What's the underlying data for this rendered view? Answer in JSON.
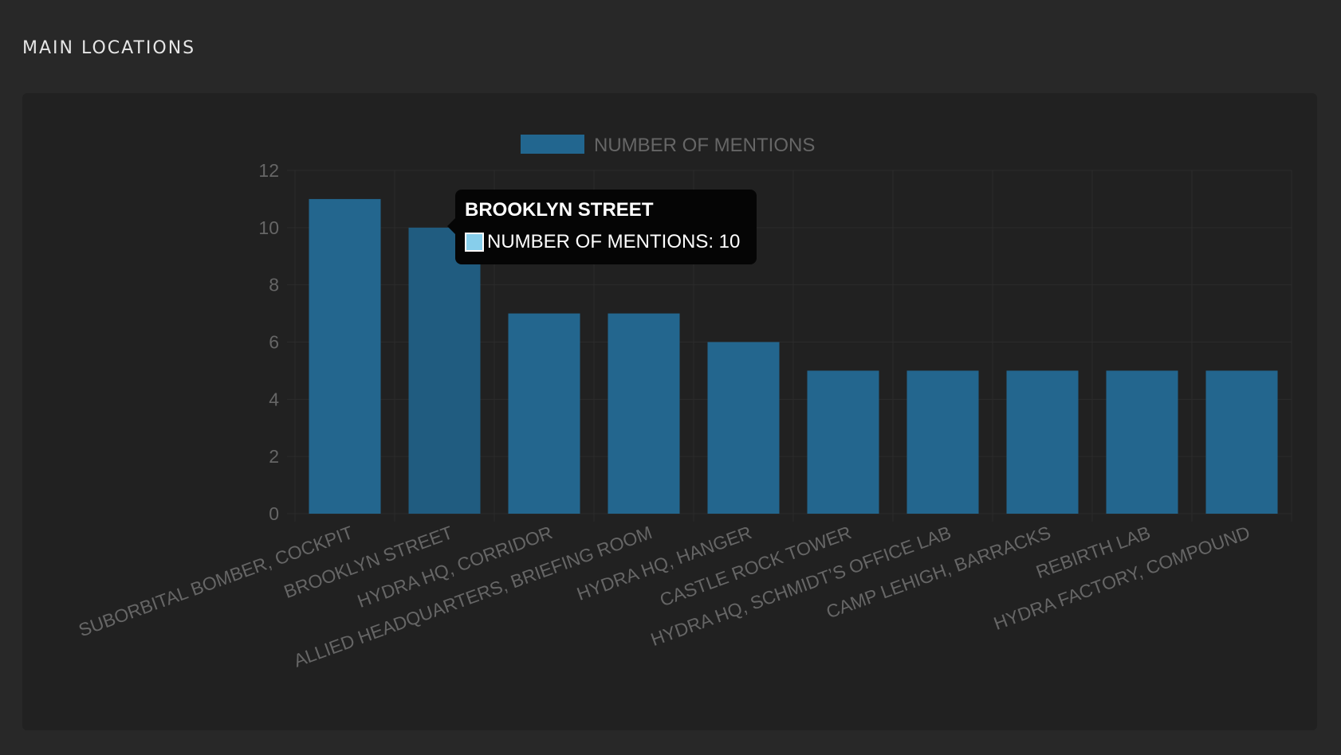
{
  "page": {
    "section_title": "MAIN LOCATIONS"
  },
  "colors": {
    "bar_fill": "#23668e",
    "bar_hover_fill": "#205c80",
    "legend_swatch": "#22668f",
    "axis_text": "#666666",
    "grid": "#2b2b2b",
    "tooltip_swatch": "#87ceeb"
  },
  "tooltip": {
    "title": "BROOKLYN STREET",
    "series_label": "NUMBER OF MENTIONS",
    "value": 10,
    "text": "NUMBER OF MENTIONS: 10"
  },
  "chart_data": {
    "type": "bar",
    "title": "",
    "xlabel": "",
    "ylabel": "",
    "categories": [
      "SUBORBITAL BOMBER, COCKPIT",
      "BROOKLYN STREET",
      "HYDRA HQ, CORRIDOR",
      "ALLIED HEADQUARTERS, BRIEFING ROOM",
      "HYDRA HQ, HANGER",
      "CASTLE ROCK TOWER",
      "HYDRA HQ, SCHMIDT’S OFFICE LAB",
      "CAMP LEHIGH, BARRACKS",
      "REBIRTH LAB",
      "HYDRA FACTORY, COMPOUND"
    ],
    "series": [
      {
        "name": "NUMBER OF MENTIONS",
        "values": [
          11,
          10,
          7,
          7,
          6,
          5,
          5,
          5,
          5,
          5
        ]
      }
    ],
    "ylim": [
      0,
      12
    ],
    "yticks": [
      "0",
      "2",
      "4",
      "6",
      "8",
      "10",
      "12"
    ],
    "grid": true,
    "legend_position": "top"
  }
}
